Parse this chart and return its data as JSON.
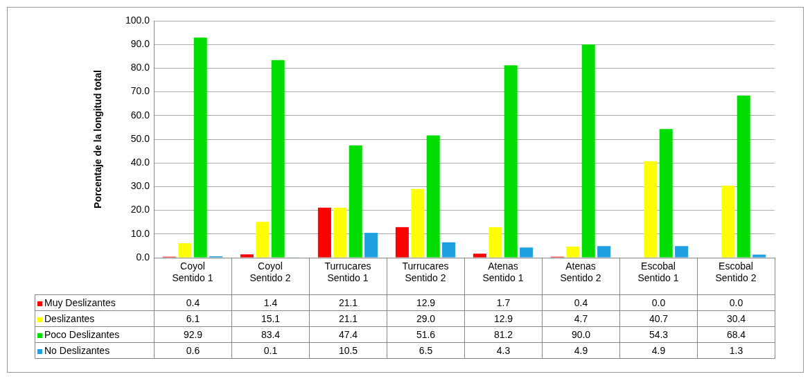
{
  "chart_data": {
    "type": "bar",
    "ylabel": "Porcentaje de la longitud total",
    "categories": [
      "Coyol Sentido 1",
      "Coyol Sentido 2",
      "Turrucares Sentido 1",
      "Turrucares Sentido 2",
      "Atenas Sentido 1",
      "Atenas Sentido 2",
      "Escobal Sentido 1",
      "Escobal Sentido 2"
    ],
    "series": [
      {
        "name": "Muy Deslizantes",
        "color": "#ff0000",
        "values": [
          0.4,
          1.4,
          21.1,
          12.9,
          1.7,
          0.4,
          0.0,
          0.0
        ],
        "value_labels": [
          "0.4",
          "1.4",
          "21.1",
          "12.9",
          "1.7",
          "0.4",
          "0.0",
          "0.0"
        ]
      },
      {
        "name": "Deslizantes",
        "color": "#ffff00",
        "values": [
          6.1,
          15.1,
          21.1,
          29.0,
          12.9,
          4.7,
          40.7,
          30.4
        ],
        "value_labels": [
          "6.1",
          "15.1",
          "21.1",
          "29.0",
          "12.9",
          "4.7",
          "40.7",
          "30.4"
        ]
      },
      {
        "name": "Poco Deslizantes",
        "color": "#00dd00",
        "values": [
          92.9,
          83.4,
          47.4,
          51.6,
          81.2,
          90.0,
          54.3,
          68.4
        ],
        "value_labels": [
          "92.9",
          "83.4",
          "47.4",
          "51.6",
          "81.2",
          "90.0",
          "54.3",
          "68.4"
        ]
      },
      {
        "name": "No Deslizantes",
        "color": "#1ca0e0",
        "values": [
          0.6,
          0.1,
          10.5,
          6.5,
          4.3,
          4.9,
          4.9,
          1.3
        ],
        "value_labels": [
          "0.6",
          "0.1",
          "10.5",
          "6.5",
          "4.3",
          "4.9",
          "4.9",
          "1.3"
        ]
      }
    ],
    "ylim": [
      0,
      100
    ],
    "yticks": [
      {
        "value": 0,
        "label": "0.0"
      },
      {
        "value": 10,
        "label": "10.0"
      },
      {
        "value": 20,
        "label": "20.0"
      },
      {
        "value": 30,
        "label": "30.0"
      },
      {
        "value": 40,
        "label": "40.0"
      },
      {
        "value": 50,
        "label": "50.0"
      },
      {
        "value": 60,
        "label": "60.0"
      },
      {
        "value": 70,
        "label": "70.0"
      },
      {
        "value": 80,
        "label": "80.0"
      },
      {
        "value": 90,
        "label": "90.0"
      },
      {
        "value": 100,
        "label": "100.0"
      }
    ],
    "grid": "y",
    "legend": "bottom"
  }
}
